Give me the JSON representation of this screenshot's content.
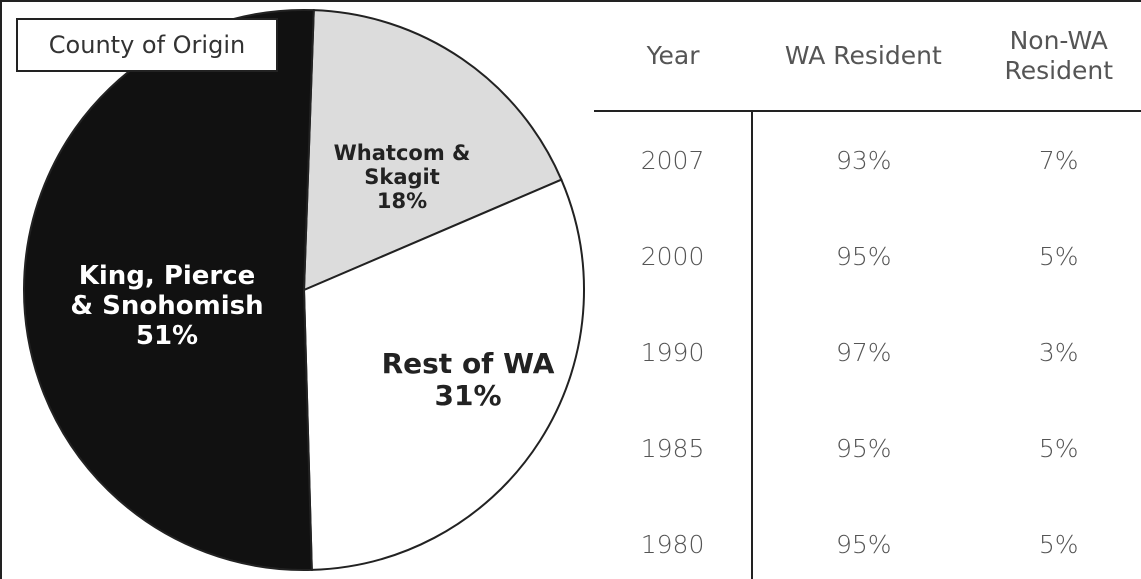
{
  "chart_data": {
    "type": "pie",
    "title": "County of Origin",
    "categories": [
      "Whatcom & Skagit",
      "Rest of WA",
      "King, Pierce & Snohomish"
    ],
    "values": [
      18,
      31,
      51
    ],
    "value_labels": [
      "18%",
      "31%",
      "51%"
    ],
    "colors": [
      "#dcdcdc",
      "#ffffff",
      "#111111"
    ]
  },
  "table": {
    "columns": [
      "Year",
      "WA Resident",
      "Non-WA Resident"
    ],
    "rows": [
      [
        "2007",
        "93%",
        "7%"
      ],
      [
        "2000",
        "95%",
        "5%"
      ],
      [
        "1990",
        "97%",
        "3%"
      ],
      [
        "1985",
        "95%",
        "5%"
      ],
      [
        "1980",
        "95%",
        "5%"
      ]
    ]
  }
}
